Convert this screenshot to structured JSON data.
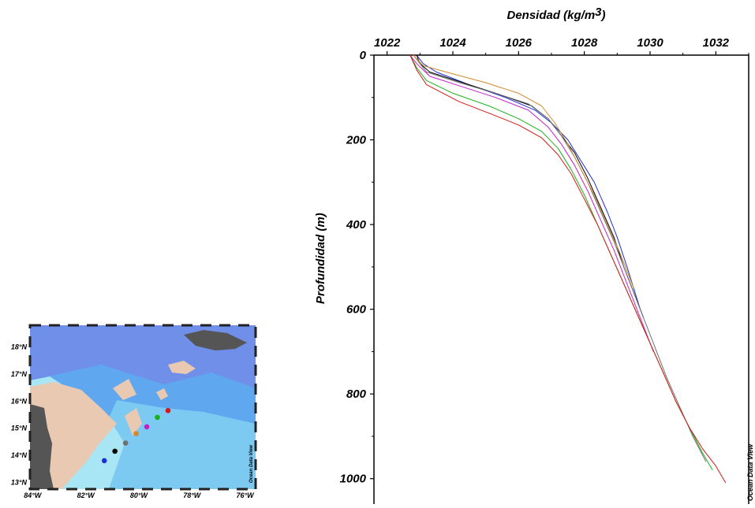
{
  "map": {
    "lat_labels": [
      "18°N",
      "17°N",
      "16°N",
      "15°N",
      "14°N",
      "13°N"
    ],
    "lon_labels": [
      "84°W",
      "82°W",
      "80°W",
      "78°W",
      "76°W"
    ],
    "watermark": "Ocean Data View",
    "stations": [
      {
        "lon": -81.3,
        "lat": 13.8,
        "color": "#1f2fd6"
      },
      {
        "lon": -80.9,
        "lat": 14.15,
        "color": "#000000"
      },
      {
        "lon": -80.5,
        "lat": 14.45,
        "color": "#707070"
      },
      {
        "lon": -80.1,
        "lat": 14.8,
        "color": "#d08a2e"
      },
      {
        "lon": -79.7,
        "lat": 15.05,
        "color": "#c51ec9"
      },
      {
        "lon": -79.3,
        "lat": 15.4,
        "color": "#19b21a"
      },
      {
        "lon": -78.9,
        "lat": 15.65,
        "color": "#d81818"
      }
    ]
  },
  "chart_data": {
    "type": "line",
    "xlabel": "Densidad (kg/m3)",
    "ylabel": "Profundidad (m)",
    "watermark": "Ocean Data View",
    "xlim": [
      1021.6,
      1033.0
    ],
    "ylim": [
      0,
      1060
    ],
    "y_inverted": true,
    "x_axis_position": "top",
    "x_ticks": [
      1022,
      1024,
      1026,
      1028,
      1030,
      1032
    ],
    "y_ticks": [
      0,
      200,
      400,
      600,
      800,
      1000
    ],
    "series": [
      {
        "color": "#1f2fd6",
        "points": [
          [
            1022.9,
            0
          ],
          [
            1023.1,
            20
          ],
          [
            1023.5,
            40
          ],
          [
            1024.5,
            70
          ],
          [
            1025.6,
            100
          ],
          [
            1026.5,
            130
          ],
          [
            1027.0,
            160
          ],
          [
            1027.5,
            200
          ],
          [
            1027.9,
            250
          ],
          [
            1028.3,
            300
          ],
          [
            1028.7,
            370
          ],
          [
            1029.0,
            430
          ],
          [
            1029.3,
            500
          ],
          [
            1029.7,
            600
          ]
        ]
      },
      {
        "color": "#000000",
        "points": [
          [
            1022.9,
            0
          ],
          [
            1023.0,
            20
          ],
          [
            1023.3,
            40
          ],
          [
            1024.5,
            70
          ],
          [
            1025.5,
            95
          ],
          [
            1026.4,
            120
          ],
          [
            1026.9,
            150
          ],
          [
            1027.3,
            190
          ],
          [
            1027.7,
            230
          ],
          [
            1028.1,
            290
          ],
          [
            1028.5,
            360
          ],
          [
            1028.9,
            430
          ],
          [
            1029.2,
            500
          ],
          [
            1029.5,
            560
          ],
          [
            1029.8,
            620
          ]
        ]
      },
      {
        "color": "#707070",
        "points": [
          [
            1022.8,
            0
          ],
          [
            1023.0,
            20
          ],
          [
            1023.2,
            40
          ],
          [
            1024.2,
            65
          ],
          [
            1025.3,
            90
          ],
          [
            1026.3,
            115
          ],
          [
            1026.9,
            150
          ],
          [
            1027.3,
            190
          ],
          [
            1027.7,
            240
          ],
          [
            1028.1,
            300
          ],
          [
            1028.5,
            370
          ],
          [
            1028.9,
            440
          ],
          [
            1029.3,
            520
          ],
          [
            1029.7,
            600
          ],
          [
            1030.1,
            680
          ],
          [
            1030.5,
            760
          ],
          [
            1030.9,
            830
          ],
          [
            1031.3,
            900
          ],
          [
            1031.7,
            960
          ]
        ]
      },
      {
        "color": "#d08a2e",
        "points": [
          [
            1022.8,
            0
          ],
          [
            1023.1,
            25
          ],
          [
            1023.8,
            40
          ],
          [
            1025.0,
            65
          ],
          [
            1026.0,
            90
          ],
          [
            1026.7,
            120
          ],
          [
            1027.1,
            160
          ],
          [
            1027.5,
            210
          ],
          [
            1027.9,
            270
          ],
          [
            1028.3,
            330
          ],
          [
            1028.7,
            400
          ],
          [
            1029.1,
            470
          ],
          [
            1029.5,
            550
          ]
        ]
      },
      {
        "color": "#c51ec9",
        "points": [
          [
            1022.7,
            0
          ],
          [
            1022.9,
            20
          ],
          [
            1023.3,
            50
          ],
          [
            1024.3,
            75
          ],
          [
            1025.3,
            100
          ],
          [
            1026.3,
            130
          ],
          [
            1026.9,
            170
          ],
          [
            1027.3,
            210
          ],
          [
            1027.7,
            260
          ],
          [
            1028.1,
            320
          ],
          [
            1028.5,
            390
          ],
          [
            1028.9,
            460
          ],
          [
            1029.3,
            540
          ],
          [
            1029.7,
            620
          ],
          [
            1030.1,
            700
          ]
        ]
      },
      {
        "color": "#19b21a",
        "points": [
          [
            1022.7,
            0
          ],
          [
            1022.9,
            30
          ],
          [
            1023.2,
            60
          ],
          [
            1024.0,
            90
          ],
          [
            1025.1,
            120
          ],
          [
            1026.0,
            150
          ],
          [
            1026.7,
            180
          ],
          [
            1027.2,
            220
          ],
          [
            1027.6,
            270
          ],
          [
            1028.0,
            330
          ],
          [
            1028.4,
            400
          ],
          [
            1028.8,
            470
          ],
          [
            1029.2,
            540
          ],
          [
            1029.6,
            610
          ],
          [
            1030.0,
            680
          ],
          [
            1030.4,
            750
          ],
          [
            1030.8,
            820
          ],
          [
            1031.2,
            880
          ],
          [
            1031.6,
            940
          ],
          [
            1031.9,
            980
          ]
        ]
      },
      {
        "color": "#d81818",
        "points": [
          [
            1022.7,
            0
          ],
          [
            1022.9,
            35
          ],
          [
            1023.2,
            70
          ],
          [
            1024.2,
            110
          ],
          [
            1025.2,
            140
          ],
          [
            1026.0,
            165
          ],
          [
            1026.7,
            195
          ],
          [
            1027.2,
            235
          ],
          [
            1027.6,
            280
          ],
          [
            1028.0,
            340
          ],
          [
            1028.4,
            400
          ],
          [
            1028.8,
            470
          ],
          [
            1029.2,
            540
          ],
          [
            1029.6,
            610
          ],
          [
            1030.0,
            680
          ],
          [
            1030.4,
            750
          ],
          [
            1030.8,
            820
          ],
          [
            1031.2,
            880
          ],
          [
            1031.6,
            930
          ],
          [
            1032.0,
            970
          ],
          [
            1032.3,
            1010
          ]
        ]
      }
    ]
  }
}
